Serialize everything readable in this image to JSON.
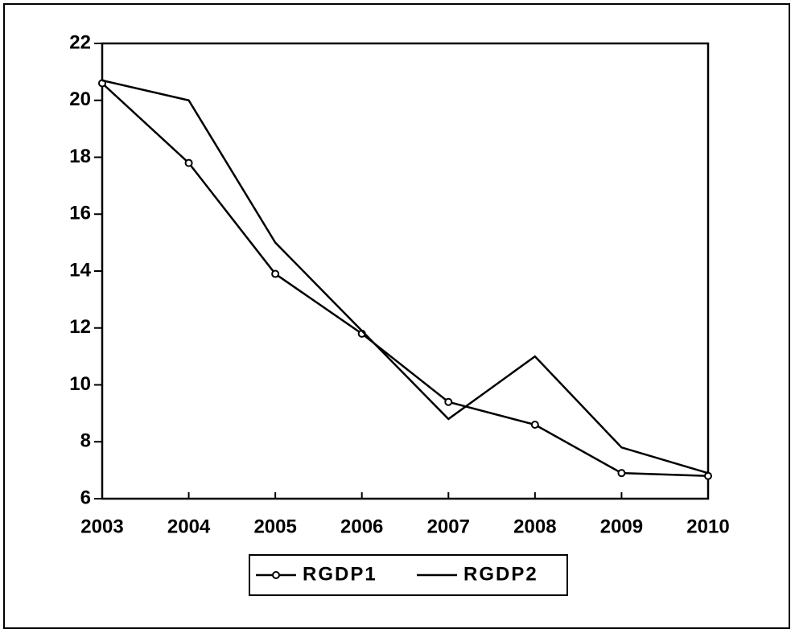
{
  "chart_data": {
    "type": "line",
    "x": [
      2003,
      2004,
      2005,
      2006,
      2007,
      2008,
      2009,
      2010
    ],
    "series": [
      {
        "name": "RGDP1",
        "color": "#000000",
        "marker": "circle",
        "values": [
          20.6,
          17.8,
          13.9,
          11.8,
          9.4,
          8.6,
          6.9,
          6.8
        ]
      },
      {
        "name": "RGDP2",
        "color": "#000000",
        "marker": "none",
        "values": [
          20.7,
          20.0,
          15.0,
          11.9,
          8.8,
          11.0,
          7.8,
          6.9
        ]
      }
    ],
    "xlim": [
      2003,
      2010
    ],
    "xticks": [
      2003,
      2004,
      2005,
      2006,
      2007,
      2008,
      2009,
      2010
    ],
    "ylim": [
      6,
      22
    ],
    "yticks": [
      6,
      8,
      10,
      12,
      14,
      16,
      18,
      20,
      22
    ],
    "grid": false,
    "legend": "bottom"
  }
}
